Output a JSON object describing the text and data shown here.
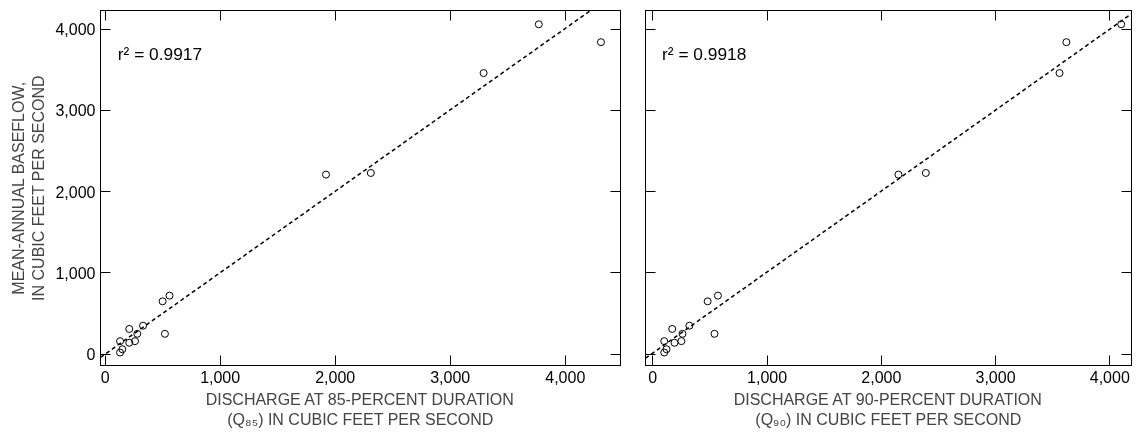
{
  "chart_data": [
    {
      "type": "scatter",
      "xlabel": "DISCHARGE AT 85-PERCENT DURATION\n(Q₈₅) IN CUBIC FEET PER SECOND",
      "ylabel": "MEAN-ANNUAL BASEFLOW,\nIN CUBIC FEET PER SECOND",
      "xlim": [
        -40,
        4480
      ],
      "ylim": [
        -140,
        4230
      ],
      "xticks": [
        0,
        {
          "value": 1000,
          "label": "1,000"
        },
        {
          "value": 2000,
          "label": "2,000"
        },
        {
          "value": 3000,
          "label": "3,000"
        },
        {
          "value": 4000,
          "label": "4,000"
        }
      ],
      "yticks": [
        0,
        {
          "value": 1000,
          "label": "1,000"
        },
        {
          "value": 2000,
          "label": "2,000"
        },
        {
          "value": 3000,
          "label": "3,000"
        },
        {
          "value": 4000,
          "label": "4,000"
        }
      ],
      "grid": false,
      "annotations": [
        "r² = 0.9917"
      ],
      "series": [
        {
          "marker": "circle",
          "color": "#000000",
          "x": [
            130,
            150,
            130,
            210,
            260,
            210,
            280,
            330,
            500,
            560,
            520,
            1920,
            2310,
            3290,
            3770,
            4310
          ],
          "values": [
            20,
            60,
            160,
            140,
            160,
            310,
            250,
            350,
            650,
            720,
            250,
            2210,
            2230,
            3460,
            4060,
            3840
          ]
        },
        {
          "type": "line",
          "line_style": "dashed",
          "color": "#000000",
          "x": [
            -40,
            4220
          ],
          "values": [
            -40,
            4230
          ]
        }
      ]
    },
    {
      "type": "scatter",
      "xlabel": "DISCHARGE AT 90-PERCENT DURATION\n(Q₉₀) IN CUBIC FEET PER SECOND",
      "tick_labels": "x",
      "xlim": [
        -64,
        4190
      ],
      "ylim": [
        -140,
        4230
      ],
      "xticks": [
        0,
        {
          "value": 1000,
          "label": "1,000"
        },
        {
          "value": 2000,
          "label": "2,000"
        },
        {
          "value": 3000,
          "label": "3,000"
        },
        {
          "value": 4000,
          "label": "4,000"
        }
      ],
      "yticks": [
        0,
        1000,
        2000,
        3000,
        4000
      ],
      "grid": false,
      "annotations": [
        "r² = 0.9918"
      ],
      "series": [
        {
          "marker": "circle",
          "color": "#000000",
          "x": [
            100,
            120,
            100,
            190,
            250,
            170,
            260,
            320,
            480,
            570,
            540,
            2150,
            2390,
            3560,
            3620,
            4100
          ],
          "values": [
            20,
            60,
            160,
            140,
            160,
            310,
            250,
            350,
            650,
            720,
            250,
            2210,
            2230,
            3460,
            3840,
            4060
          ]
        },
        {
          "type": "line",
          "line_style": "dashed",
          "color": "#000000",
          "x": [
            -64,
            4190
          ],
          "values": [
            -50,
            4190
          ]
        }
      ]
    }
  ]
}
